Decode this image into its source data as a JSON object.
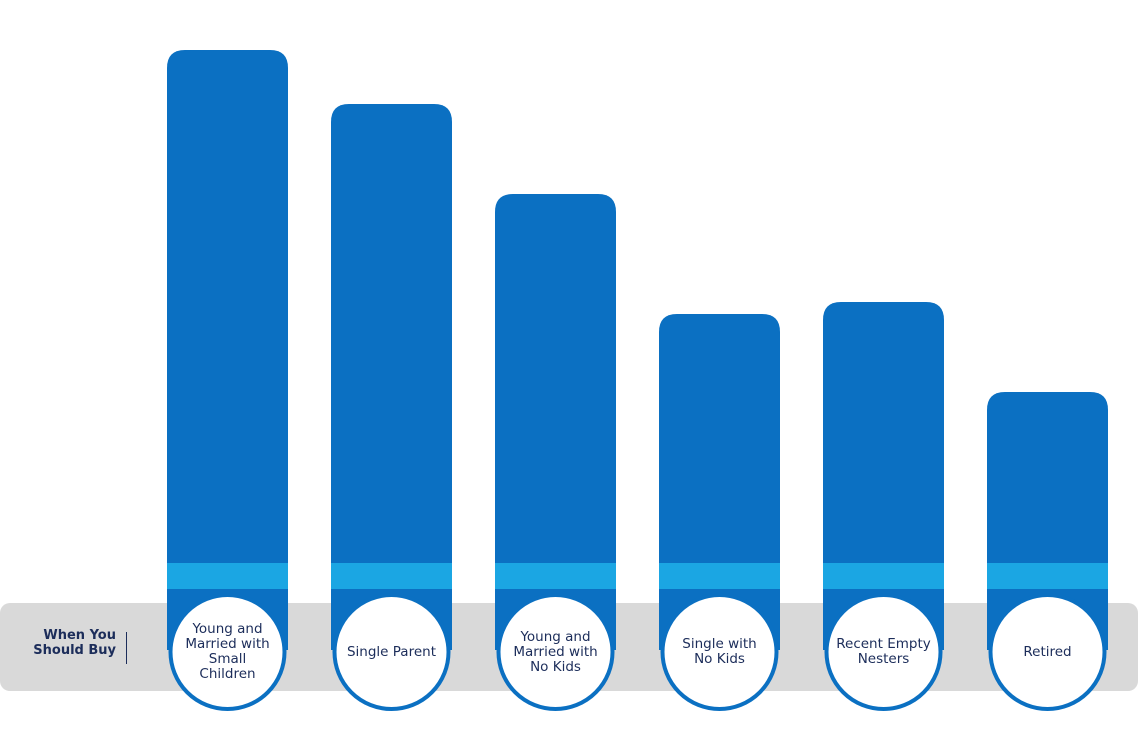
{
  "chart_data": {
    "type": "bar",
    "label": "When You Should Buy",
    "categories": [
      "Young and Married with Small Children",
      "Single Parent",
      "Young and Married with No Kids",
      "Single with No Kids",
      "Recent Empty Nesters",
      "Retired"
    ],
    "values": [
      100,
      91,
      76,
      56,
      58,
      43
    ],
    "color": "#0b70c2"
  }
}
